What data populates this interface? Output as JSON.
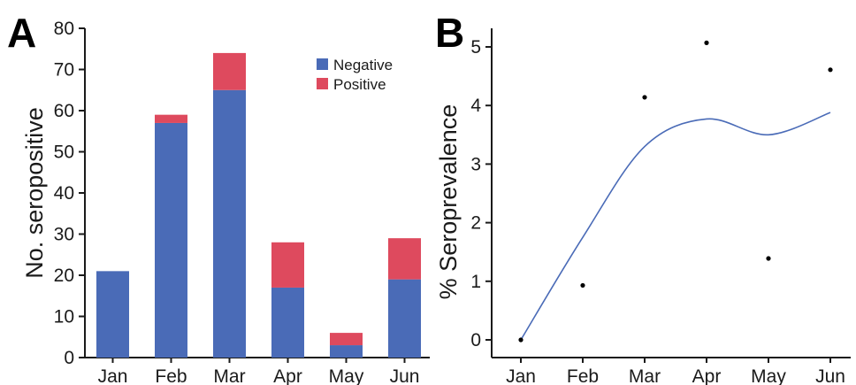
{
  "chart_data": [
    {
      "panel": "A",
      "type": "bar",
      "stacked": true,
      "title": "",
      "xlabel": "",
      "ylabel": "No. seropositive",
      "ylim": [
        0,
        80
      ],
      "yticks": [
        0,
        10,
        20,
        30,
        40,
        50,
        60,
        70,
        80
      ],
      "categories": [
        "Jan",
        "Feb",
        "Mar",
        "Apr",
        "May",
        "Jun"
      ],
      "series": [
        {
          "name": "Negative",
          "color": "#4a6bb7",
          "values": [
            21,
            57,
            65,
            17,
            3,
            19
          ]
        },
        {
          "name": "Positive",
          "color": "#de4a5e",
          "values": [
            0,
            2,
            9,
            11,
            3,
            10
          ]
        }
      ],
      "legend_position": "top-right",
      "grid": false
    },
    {
      "panel": "B",
      "type": "scatter",
      "title": "",
      "xlabel": "",
      "ylabel": "% Seroprevalence",
      "ylim": [
        0,
        5.3
      ],
      "yticks": [
        0,
        1,
        2,
        3,
        4,
        5
      ],
      "categories": [
        "Jan",
        "Feb",
        "Mar",
        "Apr",
        "May",
        "Jun"
      ],
      "points": [
        0,
        0.93,
        4.14,
        5.07,
        1.39,
        4.61
      ],
      "smooth_line": {
        "color": "#4a6bb7",
        "values": [
          0,
          1.75,
          3.3,
          3.77,
          3.5,
          3.88
        ]
      },
      "point_color": "#000000",
      "grid": false
    }
  ]
}
